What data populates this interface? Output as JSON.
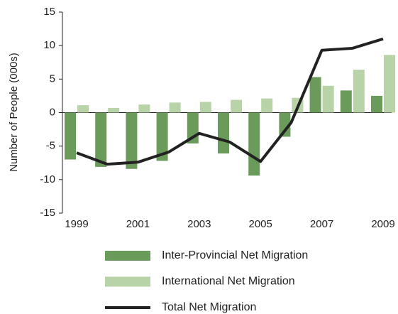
{
  "chart_data": {
    "type": "bar",
    "y_label": "Number of People (000s)",
    "categories": [
      "1999",
      null,
      "2001",
      null,
      "2003",
      null,
      "2005",
      null,
      "2007",
      null,
      "2009"
    ],
    "series": [
      {
        "name": "Inter-Provincial Net Migration",
        "type": "bar",
        "color": "#6b9b5b",
        "values": [
          -7.0,
          -8.1,
          -8.4,
          -7.2,
          -4.6,
          -6.1,
          -9.4,
          -3.6,
          5.3,
          3.3,
          2.5
        ]
      },
      {
        "name": "International Net Migration",
        "type": "bar",
        "color": "#b8d3a8",
        "values": [
          1.1,
          0.7,
          1.2,
          1.5,
          1.6,
          1.9,
          2.1,
          2.2,
          4.0,
          6.4,
          8.6
        ]
      },
      {
        "name": "Total Net Migration",
        "type": "line",
        "color": "#222222",
        "values": [
          -6.0,
          -7.7,
          -7.4,
          -5.9,
          -3.1,
          -4.4,
          -7.3,
          -1.5,
          9.3,
          9.6,
          11.0
        ]
      }
    ],
    "ylim": [
      -15,
      15
    ],
    "yticks": [
      -15,
      -10,
      -5,
      0,
      5,
      10,
      15
    ]
  }
}
